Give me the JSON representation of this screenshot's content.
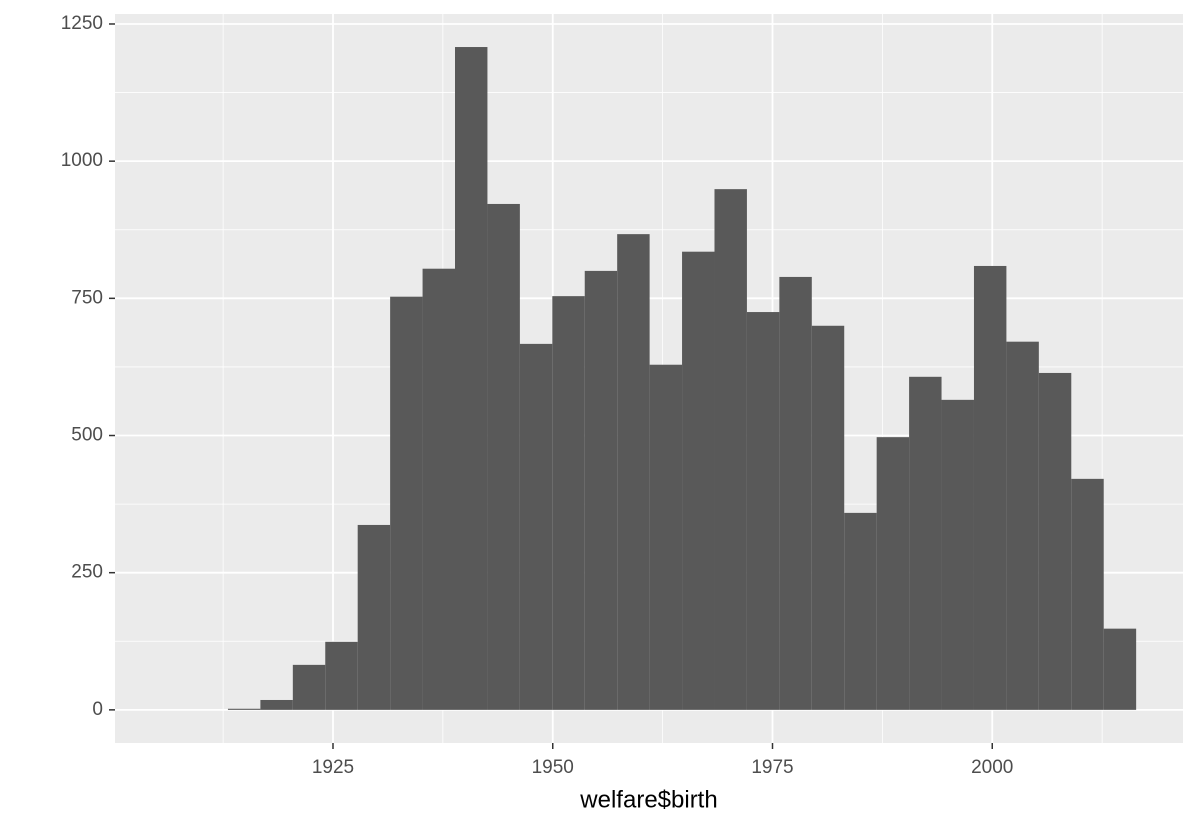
{
  "chart_data": {
    "type": "histogram",
    "x_label": "welfare$birth",
    "bins": [
      1905.67,
      1909.36,
      1913.05,
      1916.74,
      1920.43,
      1924.12,
      1927.81,
      1931.5,
      1935.19,
      1938.88,
      1942.57,
      1946.26,
      1949.95,
      1953.64,
      1957.33,
      1961.02,
      1964.71,
      1968.4,
      1972.09,
      1975.78,
      1979.47,
      1983.16,
      1986.85,
      1990.54,
      1994.23,
      1997.92,
      2001.61,
      2005.3,
      2008.99,
      2012.68,
      2016.37
    ],
    "values": [
      0,
      0,
      2,
      18,
      82,
      124,
      337,
      753,
      804,
      1208,
      922,
      667,
      754,
      800,
      867,
      629,
      835,
      949,
      725,
      789,
      700,
      359,
      497,
      607,
      565,
      809,
      671,
      614,
      421,
      148
    ],
    "color": "#595959",
    "xlim": [
      1900.2,
      2021.7
    ],
    "ylim": [
      -60.4,
      1268.2
    ],
    "xticks": [
      1925,
      1950,
      1975,
      2000
    ],
    "yticks": [
      0,
      250,
      500,
      750,
      1000,
      1250
    ],
    "x_minor_grid": [
      1912.5,
      1937.5,
      1962.5,
      1987.5,
      2012.5
    ],
    "y_minor_grid": [
      125,
      375,
      625,
      875,
      1125
    ],
    "grid": true
  }
}
